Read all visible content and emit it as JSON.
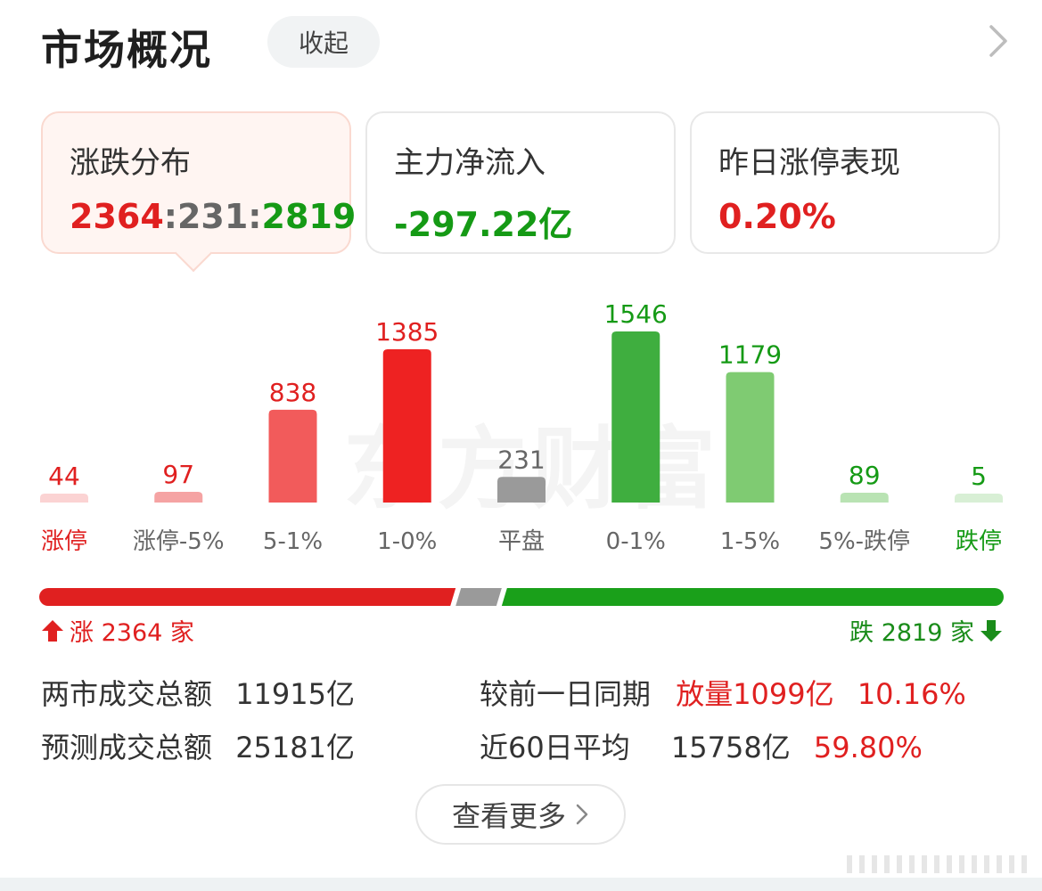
{
  "header": {
    "title": "市场概况",
    "collapse_label": "收起"
  },
  "cards": [
    {
      "label": "涨跌分布",
      "value_up": "2364",
      "sep1": ":",
      "value_flat": "231",
      "sep2": ":",
      "value_down": "2819"
    },
    {
      "label": "主力净流入",
      "value": "-297.22亿"
    },
    {
      "label": "昨日涨停表现",
      "value": "0.20%"
    }
  ],
  "watermark": "东方财富",
  "chart_data": {
    "type": "bar",
    "categories": [
      "涨停",
      "涨停-5%",
      "5-1%",
      "1-0%",
      "平盘",
      "0-1%",
      "1-5%",
      "5%-跌停",
      "跌停"
    ],
    "values": [
      44,
      97,
      838,
      1385,
      231,
      1546,
      1179,
      89,
      5
    ],
    "colors": [
      "#fbd3d3",
      "#f5a3a3",
      "#f25b5b",
      "#ee2222",
      "#9a9a9a",
      "#3fae3f",
      "#7fcb72",
      "#b9e3b3",
      "#d8efd5"
    ],
    "label_colors": [
      "#e02020",
      "#e02020",
      "#e02020",
      "#e02020",
      "#666666",
      "#159a15",
      "#159a15",
      "#159a15",
      "#159a15"
    ],
    "category_label_colors": [
      "#e02020",
      "#666666",
      "#666666",
      "#666666",
      "#666666",
      "#666666",
      "#666666",
      "#666666",
      "#159a15"
    ],
    "ylim": [
      0,
      1546
    ]
  },
  "ratio": {
    "up": 2364,
    "flat": 231,
    "down": 2819,
    "up_color": "#e02020",
    "flat_color": "#9a9a9a",
    "down_color": "#1aa01a"
  },
  "up_text": "涨 2364 家",
  "down_text": "跌 2819 家",
  "stats": {
    "row1": {
      "label": "两市成交总额",
      "value": "11915亿",
      "label2": "较前一日同期",
      "change": "放量1099亿",
      "pct": "10.16%"
    },
    "row2": {
      "label": "预测成交总额",
      "value": "25181亿",
      "label2": "近60日平均",
      "value2": "15758亿",
      "pct": "59.80%"
    }
  },
  "more_label": "查看更多"
}
